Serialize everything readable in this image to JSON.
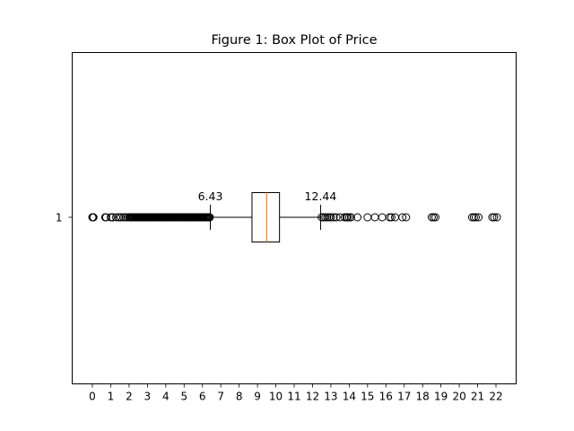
{
  "chart_data": {
    "type": "box",
    "orientation": "horizontal",
    "title": "Figure 1: Box Plot of Price",
    "xlabel": "",
    "ylabel": "",
    "xlim": [
      -1.1,
      23.1
    ],
    "xticks": [
      0,
      1,
      2,
      3,
      4,
      5,
      6,
      7,
      8,
      9,
      10,
      11,
      12,
      13,
      14,
      15,
      16,
      17,
      18,
      19,
      20,
      21,
      22
    ],
    "xtick_labels": [
      "0",
      "1",
      "2",
      "3",
      "4",
      "5",
      "6",
      "7",
      "8",
      "9",
      "10",
      "11",
      "12",
      "13",
      "14",
      "15",
      "16",
      "17",
      "18",
      "19",
      "20",
      "21",
      "22"
    ],
    "yticks": [
      1
    ],
    "ytick_labels": [
      "1"
    ],
    "grid": false,
    "series": [
      {
        "position": 1,
        "whisker_low": 6.43,
        "q1": 8.7,
        "median": 9.5,
        "q3": 10.2,
        "whisker_high": 12.44,
        "outliers_low": [
          0.0,
          0.03,
          0.06,
          0.7,
          0.75,
          1.0,
          1.1,
          1.3,
          1.45,
          1.55,
          1.7,
          1.8,
          1.9,
          2.0,
          2.05,
          2.1,
          2.15,
          2.2,
          2.25,
          2.3,
          2.35,
          2.4,
          2.45,
          2.5,
          2.55,
          2.6,
          2.65,
          2.7,
          2.75,
          2.8,
          2.85,
          2.9,
          2.95,
          3.0,
          3.05,
          3.1,
          3.15,
          3.2,
          3.25,
          3.3,
          3.35,
          3.4,
          3.45,
          3.5,
          3.55,
          3.6,
          3.65,
          3.7,
          3.75,
          3.8,
          3.85,
          3.9,
          3.95,
          4.0,
          4.05,
          4.1,
          4.15,
          4.2,
          4.25,
          4.3,
          4.35,
          4.4,
          4.45,
          4.5,
          4.55,
          4.6,
          4.65,
          4.7,
          4.75,
          4.8,
          4.85,
          4.9,
          4.95,
          5.0,
          5.05,
          5.1,
          5.15,
          5.2,
          5.25,
          5.3,
          5.35,
          5.4,
          5.45,
          5.5,
          5.55,
          5.6,
          5.65,
          5.7,
          5.75,
          5.8,
          5.85,
          5.9,
          5.95,
          6.0,
          6.05,
          6.1,
          6.15,
          6.2,
          6.25,
          6.3,
          6.35,
          6.4
        ],
        "outliers_high": [
          12.5,
          12.6,
          12.7,
          12.8,
          12.9,
          13.0,
          13.15,
          13.3,
          13.5,
          13.75,
          13.85,
          13.9,
          14.0,
          14.1,
          14.45,
          15.0,
          15.4,
          15.8,
          16.2,
          16.3,
          16.5,
          16.9,
          17.1,
          18.5,
          18.6,
          18.7,
          20.7,
          20.8,
          20.9,
          21.05,
          21.8,
          21.9,
          22.05
        ]
      }
    ],
    "annotations": [
      {
        "text": "6.43",
        "x": 6.43
      },
      {
        "text": "12.44",
        "x": 12.44
      }
    ],
    "colors": {
      "median": "#ff7f0e",
      "box": "#000000",
      "outlier_edge": "#000000"
    }
  }
}
